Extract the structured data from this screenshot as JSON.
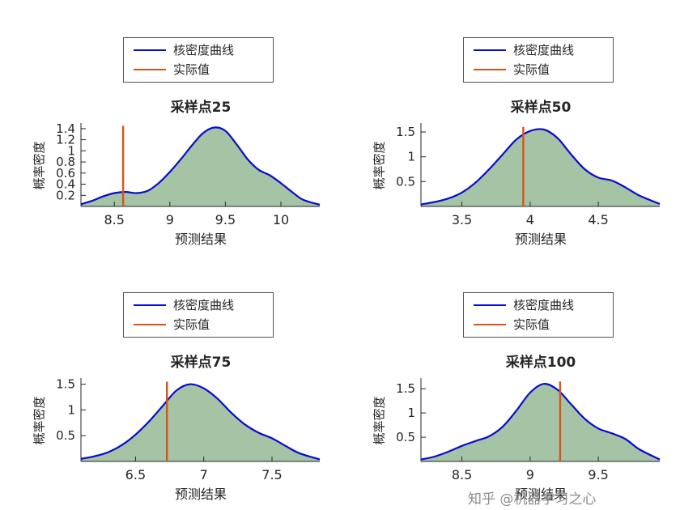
{
  "watermark": "知乎 @机器学习之心",
  "colors": {
    "kde_line": "#0a0ad2",
    "kde_fill": "#8db58e",
    "actual_line": "#d95319",
    "axis": "#262626",
    "legend_border": "#545454",
    "watermark_text": "#8c8c8c"
  },
  "chart_data": [
    {
      "type": "area",
      "title": "采样点25",
      "xlabel": "预测结果",
      "ylabel": "概率密度",
      "legend": [
        "核密度曲线",
        "实际值"
      ],
      "x": [
        8.2,
        8.3,
        8.4,
        8.5,
        8.6,
        8.7,
        8.8,
        8.9,
        9.0,
        9.1,
        9.2,
        9.3,
        9.4,
        9.5,
        9.6,
        9.7,
        9.8,
        9.9,
        10.0,
        10.1,
        10.2,
        10.35
      ],
      "y": [
        0.04,
        0.1,
        0.18,
        0.24,
        0.26,
        0.24,
        0.28,
        0.42,
        0.62,
        0.85,
        1.1,
        1.32,
        1.42,
        1.36,
        1.12,
        0.85,
        0.66,
        0.56,
        0.42,
        0.26,
        0.12,
        0.03
      ],
      "actual_value": 8.58,
      "actual_height": 1.45,
      "xlim": [
        8.2,
        10.35
      ],
      "ylim": [
        0,
        1.5
      ],
      "xticks": [
        8.5,
        9,
        9.5,
        10
      ],
      "yticks": [
        0.2,
        0.4,
        0.6,
        0.8,
        1.0,
        1.2,
        1.4
      ],
      "legend_position": "above",
      "grid": false
    },
    {
      "type": "area",
      "title": "采样点50",
      "xlabel": "预测结果",
      "ylabel": "概率密度",
      "legend": [
        "核密度曲线",
        "实际值"
      ],
      "x": [
        3.2,
        3.3,
        3.4,
        3.5,
        3.6,
        3.7,
        3.8,
        3.9,
        4.0,
        4.1,
        4.2,
        4.3,
        4.4,
        4.5,
        4.6,
        4.7,
        4.8,
        4.95
      ],
      "y": [
        0.04,
        0.09,
        0.16,
        0.28,
        0.48,
        0.75,
        1.05,
        1.35,
        1.52,
        1.55,
        1.38,
        1.05,
        0.75,
        0.58,
        0.52,
        0.38,
        0.22,
        0.05
      ],
      "actual_value": 3.95,
      "actual_height": 1.6,
      "xlim": [
        3.2,
        4.95
      ],
      "ylim": [
        0,
        1.68
      ],
      "xticks": [
        3.5,
        4,
        4.5
      ],
      "yticks": [
        0.5,
        1.0,
        1.5
      ],
      "legend_position": "above",
      "grid": false
    },
    {
      "type": "area",
      "title": "采样点75",
      "xlabel": "预测结果",
      "ylabel": "概率密度",
      "legend": [
        "核密度曲线",
        "实际值"
      ],
      "x": [
        6.1,
        6.2,
        6.3,
        6.4,
        6.5,
        6.6,
        6.7,
        6.8,
        6.9,
        7.0,
        7.1,
        7.2,
        7.3,
        7.4,
        7.5,
        7.6,
        7.7,
        7.85
      ],
      "y": [
        0.05,
        0.1,
        0.18,
        0.32,
        0.52,
        0.78,
        1.08,
        1.38,
        1.5,
        1.42,
        1.22,
        0.95,
        0.72,
        0.56,
        0.45,
        0.3,
        0.16,
        0.04
      ],
      "actual_value": 6.73,
      "actual_height": 1.55,
      "xlim": [
        6.1,
        7.85
      ],
      "ylim": [
        0,
        1.62
      ],
      "xticks": [
        6.5,
        7,
        7.5
      ],
      "yticks": [
        0.5,
        1.0,
        1.5
      ],
      "legend_position": "above",
      "grid": false
    },
    {
      "type": "area",
      "title": "采样点100",
      "xlabel": "预测结果",
      "ylabel": "概率密度",
      "legend": [
        "核密度曲线",
        "实际值"
      ],
      "x": [
        8.2,
        8.3,
        8.4,
        8.5,
        8.6,
        8.7,
        8.8,
        8.9,
        9.0,
        9.1,
        9.2,
        9.3,
        9.4,
        9.5,
        9.6,
        9.7,
        9.8,
        9.95
      ],
      "y": [
        0.04,
        0.1,
        0.2,
        0.32,
        0.42,
        0.52,
        0.72,
        1.05,
        1.42,
        1.6,
        1.48,
        1.18,
        0.88,
        0.68,
        0.58,
        0.46,
        0.25,
        0.04
      ],
      "actual_value": 9.22,
      "actual_height": 1.65,
      "xlim": [
        8.2,
        9.95
      ],
      "ylim": [
        0,
        1.72
      ],
      "xticks": [
        8.5,
        9,
        9.5
      ],
      "yticks": [
        0.5,
        1.0,
        1.5
      ],
      "legend_position": "above",
      "grid": false
    }
  ]
}
